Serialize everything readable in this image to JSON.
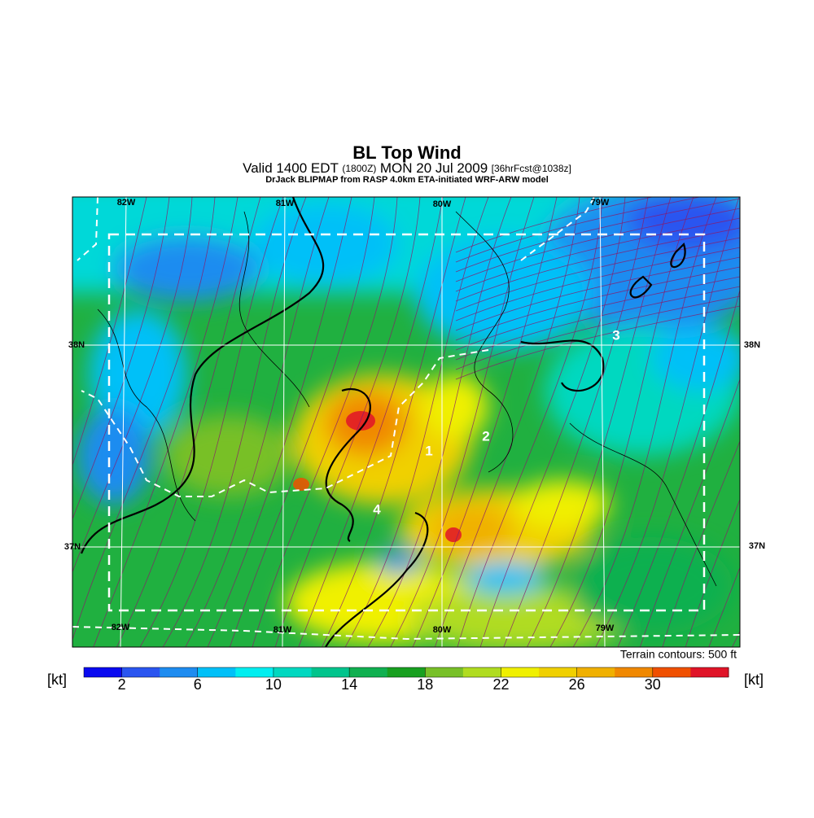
{
  "title": "BL Top Wind",
  "subtitle": {
    "valid": "Valid 1400 EDT",
    "utc": "(1800Z)",
    "date": "MON 20 Jul 2009",
    "forecast": "[36hrFcst@1038z]"
  },
  "credit": "DrJack BLIPMAP from RASP 4.0km ETA-initiated WRF-ARW model",
  "map": {
    "lon_labels_top": [
      "82W",
      "81W",
      "80W",
      "79W"
    ],
    "lon_labels_bottom": [
      "82W",
      "81W",
      "80W",
      "79W"
    ],
    "lat_labels_left": [
      "38N",
      "37N"
    ],
    "lat_labels_right": [
      "38N",
      "37N"
    ],
    "point_labels": [
      "1",
      "2",
      "3",
      "4"
    ]
  },
  "terrain_note": "Terrain contours: 500 ft",
  "colorbar": {
    "unit_left": "[kt]",
    "unit_right": "[kt]",
    "lim": [
      0,
      34
    ],
    "ticks": [
      2,
      6,
      10,
      14,
      18,
      22,
      26,
      30
    ],
    "colors": [
      "#0a0af0",
      "#2a55f0",
      "#1e8cf0",
      "#00c0f8",
      "#00eef0",
      "#00d8c0",
      "#00c48c",
      "#10b050",
      "#18a020",
      "#78c028",
      "#b0dc20",
      "#f0f000",
      "#f0d000",
      "#f0b000",
      "#f08800",
      "#f05000",
      "#e01428"
    ]
  }
}
